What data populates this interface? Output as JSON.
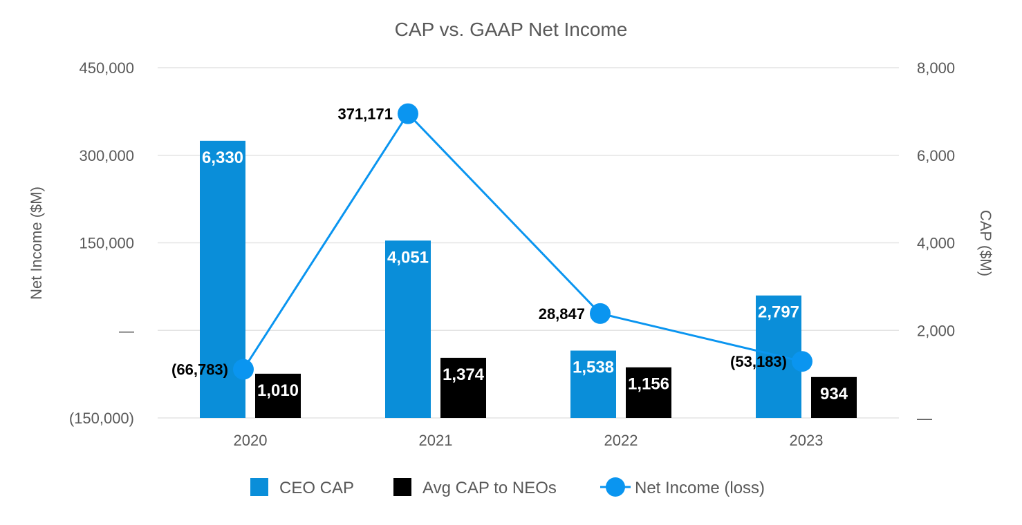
{
  "chart_data": {
    "type": "bar",
    "title": "CAP vs. GAAP Net Income",
    "categories": [
      "2020",
      "2021",
      "2022",
      "2023"
    ],
    "y_left": {
      "label": "Net Income ($M)",
      "range": [
        -150000,
        450000
      ],
      "ticks": [
        {
          "value": 450000,
          "label": "450,000"
        },
        {
          "value": 300000,
          "label": "300,000"
        },
        {
          "value": 150000,
          "label": "150,000"
        },
        {
          "value": 0,
          "label": "—"
        },
        {
          "value": -150000,
          "label": "(150,000)"
        }
      ]
    },
    "y_right": {
      "label": "CAP ($M)",
      "range": [
        0,
        8000
      ],
      "ticks": [
        {
          "value": 8000,
          "label": "8,000"
        },
        {
          "value": 6000,
          "label": "6,000"
        },
        {
          "value": 4000,
          "label": "4,000"
        },
        {
          "value": 2000,
          "label": "2,000"
        },
        {
          "value": 0,
          "label": "—"
        }
      ]
    },
    "grid": true,
    "legend_position": "bottom",
    "series": [
      {
        "name": "CEO CAP",
        "kind": "bar",
        "axis": "right",
        "color": "#0a8ed9",
        "values": [
          6330,
          4051,
          1538,
          2797
        ],
        "labels": [
          "6,330",
          "4,051",
          "1,538",
          "2,797"
        ]
      },
      {
        "name": "Avg CAP to NEOs",
        "kind": "bar",
        "axis": "right",
        "color": "#000000",
        "values": [
          1010,
          1374,
          1156,
          934
        ],
        "labels": [
          "1,010",
          "1,374",
          "1,156",
          "934"
        ]
      },
      {
        "name": "Net Income (loss)",
        "kind": "line",
        "axis": "left",
        "color": "#0a95f0",
        "values": [
          -66783,
          371171,
          28847,
          -53183
        ],
        "labels": [
          "(66,783)",
          "371,171",
          "28,847",
          "(53,183)"
        ]
      }
    ]
  }
}
